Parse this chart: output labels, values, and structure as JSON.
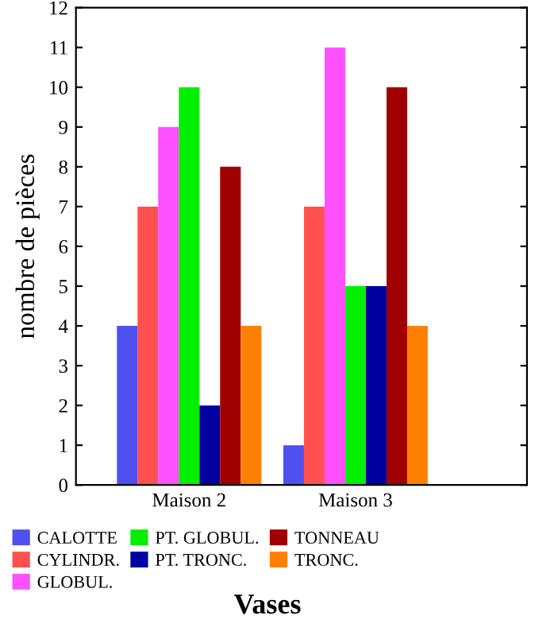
{
  "chart_data": {
    "type": "bar",
    "xlabel": "Vases",
    "ylabel": "nombre de pièces",
    "categories": [
      "Maison 2",
      "Maison 3"
    ],
    "series": [
      {
        "name": "CALOTTE",
        "color": "#5050f0",
        "values": [
          4,
          1
        ]
      },
      {
        "name": "CYLINDR.",
        "color": "#ff5050",
        "values": [
          7,
          7
        ]
      },
      {
        "name": "GLOBUL.",
        "color": "#ff50ff",
        "values": [
          9,
          11
        ]
      },
      {
        "name": "PT. GLOBUL.",
        "color": "#00f000",
        "values": [
          10,
          5
        ]
      },
      {
        "name": "PT. TRONC.",
        "color": "#0000a0",
        "values": [
          2,
          5
        ]
      },
      {
        "name": "TONNEAU",
        "color": "#a00000",
        "values": [
          8,
          10
        ]
      },
      {
        "name": "TRONC.",
        "color": "#ff8000",
        "values": [
          4,
          4
        ]
      }
    ],
    "ylim": [
      0,
      12
    ],
    "yticks": [
      0,
      1,
      2,
      3,
      4,
      5,
      6,
      7,
      8,
      9,
      10,
      11,
      12
    ],
    "grid": false,
    "legend": "bottom"
  }
}
